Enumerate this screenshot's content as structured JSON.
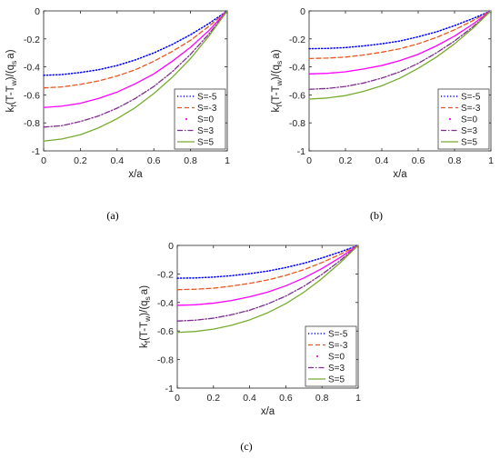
{
  "colors": {
    "S=-5": "#0000ff",
    "S=-3": "#e8561f",
    "S=0": "#ff00ff",
    "S=3": "#7e2f8e",
    "S=5": "#77ac30",
    "axis": "#262626"
  },
  "chart_data": [
    {
      "type": "line",
      "caption": "(a)",
      "xlabel": "x/a",
      "ylabel": "k_f(T-T_w)/(q_s a)",
      "ylabel_parts": {
        "k": "k",
        "f": "f",
        "mid": "(T-T",
        "w": "w",
        "end": ")/(q",
        "s": "s",
        "tail": "a)"
      },
      "xlim": [
        0,
        1
      ],
      "ylim": [
        -1,
        0
      ],
      "xticks": [
        0,
        0.2,
        0.4,
        0.6,
        0.8,
        1
      ],
      "xticklabels": [
        "0",
        "0.2",
        "0.4",
        "0.6",
        "0.8",
        "1"
      ],
      "yticks": [
        0,
        -0.2,
        -0.4,
        -0.6,
        -0.8,
        -1
      ],
      "yticklabels": [
        "0",
        "-0.2",
        "-0.4",
        "-0.6",
        "-0.8",
        "-1"
      ],
      "legend_position": "lower-right",
      "x": [
        0,
        0.1,
        0.2,
        0.3,
        0.4,
        0.5,
        0.6,
        0.7,
        0.8,
        0.9,
        1.0
      ],
      "series": [
        {
          "name": "S=-5",
          "style": "dotted",
          "values": [
            -0.46,
            -0.455,
            -0.44,
            -0.42,
            -0.39,
            -0.35,
            -0.3,
            -0.24,
            -0.17,
            -0.09,
            0
          ]
        },
        {
          "name": "S=-3",
          "style": "dashed",
          "values": [
            -0.55,
            -0.543,
            -0.525,
            -0.5,
            -0.465,
            -0.42,
            -0.36,
            -0.29,
            -0.21,
            -0.11,
            0
          ]
        },
        {
          "name": "S=0",
          "style": "solid",
          "values": [
            -0.69,
            -0.68,
            -0.66,
            -0.625,
            -0.58,
            -0.52,
            -0.45,
            -0.36,
            -0.26,
            -0.14,
            0
          ]
        },
        {
          "name": "S=3",
          "style": "dashdot",
          "values": [
            -0.83,
            -0.82,
            -0.79,
            -0.75,
            -0.695,
            -0.625,
            -0.54,
            -0.435,
            -0.31,
            -0.165,
            0
          ]
        },
        {
          "name": "S=5",
          "style": "solid",
          "values": [
            -0.93,
            -0.915,
            -0.885,
            -0.835,
            -0.77,
            -0.69,
            -0.59,
            -0.475,
            -0.34,
            -0.18,
            0
          ]
        }
      ]
    },
    {
      "type": "line",
      "caption": "(b)",
      "xlabel": "x/a",
      "ylabel": "k_f(T-T_w)/(q_s a)",
      "ylabel_parts": {
        "k": "k",
        "f": "f",
        "mid": "(T-T",
        "w": "w",
        "end": ")/(q",
        "s": "s",
        "tail": "a)"
      },
      "xlim": [
        0,
        1
      ],
      "ylim": [
        -1,
        0
      ],
      "xticks": [
        0,
        0.2,
        0.4,
        0.6,
        0.8,
        1
      ],
      "xticklabels": [
        "0",
        "0.2",
        "0.4",
        "0.6",
        "0.8",
        "1"
      ],
      "yticks": [
        0,
        -0.2,
        -0.4,
        -0.6,
        -0.8,
        -1
      ],
      "yticklabels": [
        "0",
        "-0.2",
        "-0.4",
        "-0.6",
        "-0.8",
        "-1"
      ],
      "legend_position": "lower-right",
      "x": [
        0,
        0.1,
        0.2,
        0.3,
        0.4,
        0.5,
        0.6,
        0.7,
        0.8,
        0.9,
        1.0
      ],
      "series": [
        {
          "name": "S=-5",
          "style": "dotted",
          "values": [
            -0.27,
            -0.268,
            -0.262,
            -0.25,
            -0.235,
            -0.215,
            -0.185,
            -0.15,
            -0.105,
            -0.055,
            0
          ]
        },
        {
          "name": "S=-3",
          "style": "dashed",
          "values": [
            -0.34,
            -0.337,
            -0.33,
            -0.315,
            -0.295,
            -0.27,
            -0.235,
            -0.19,
            -0.135,
            -0.07,
            0
          ]
        },
        {
          "name": "S=0",
          "style": "solid",
          "values": [
            -0.45,
            -0.446,
            -0.435,
            -0.415,
            -0.39,
            -0.355,
            -0.31,
            -0.25,
            -0.18,
            -0.095,
            0
          ]
        },
        {
          "name": "S=3",
          "style": "dashdot",
          "values": [
            -0.56,
            -0.554,
            -0.54,
            -0.515,
            -0.48,
            -0.435,
            -0.375,
            -0.3,
            -0.215,
            -0.115,
            0
          ]
        },
        {
          "name": "S=5",
          "style": "solid",
          "values": [
            -0.63,
            -0.622,
            -0.605,
            -0.575,
            -0.535,
            -0.48,
            -0.41,
            -0.33,
            -0.235,
            -0.125,
            0
          ]
        }
      ]
    },
    {
      "type": "line",
      "caption": "(c)",
      "xlabel": "x/a",
      "ylabel": "k_f(T-T_w)/(q_s a)",
      "ylabel_parts": {
        "k": "k",
        "f": "f",
        "mid": "(T-T",
        "w": "w",
        "end": ")/(q",
        "s": "s",
        "tail": "a)"
      },
      "xlim": [
        0,
        1
      ],
      "ylim": [
        -1,
        0
      ],
      "xticks": [
        0,
        0.2,
        0.4,
        0.6,
        0.8,
        1
      ],
      "xticklabels": [
        "0",
        "0.2",
        "0.4",
        "0.6",
        "0.8",
        "1"
      ],
      "yticks": [
        0,
        -0.2,
        -0.4,
        -0.6,
        -0.8,
        -1
      ],
      "yticklabels": [
        "0",
        "-0.2",
        "-0.4",
        "-0.6",
        "-0.8",
        "-1"
      ],
      "legend_position": "lower-right",
      "x": [
        0,
        0.1,
        0.2,
        0.3,
        0.4,
        0.5,
        0.6,
        0.7,
        0.8,
        0.9,
        1.0
      ],
      "series": [
        {
          "name": "S=-5",
          "style": "dotted",
          "values": [
            -0.23,
            -0.228,
            -0.222,
            -0.212,
            -0.198,
            -0.18,
            -0.155,
            -0.125,
            -0.088,
            -0.046,
            0
          ]
        },
        {
          "name": "S=-3",
          "style": "dashed",
          "values": [
            -0.31,
            -0.307,
            -0.3,
            -0.285,
            -0.266,
            -0.242,
            -0.21,
            -0.17,
            -0.12,
            -0.063,
            0
          ]
        },
        {
          "name": "S=0",
          "style": "solid",
          "values": [
            -0.42,
            -0.416,
            -0.405,
            -0.386,
            -0.36,
            -0.327,
            -0.283,
            -0.228,
            -0.162,
            -0.085,
            0
          ]
        },
        {
          "name": "S=3",
          "style": "dashdot",
          "values": [
            -0.53,
            -0.524,
            -0.51,
            -0.486,
            -0.454,
            -0.41,
            -0.355,
            -0.286,
            -0.203,
            -0.107,
            0
          ]
        },
        {
          "name": "S=5",
          "style": "solid",
          "values": [
            -0.61,
            -0.603,
            -0.587,
            -0.56,
            -0.522,
            -0.472,
            -0.408,
            -0.328,
            -0.232,
            -0.122,
            0
          ]
        }
      ]
    }
  ]
}
